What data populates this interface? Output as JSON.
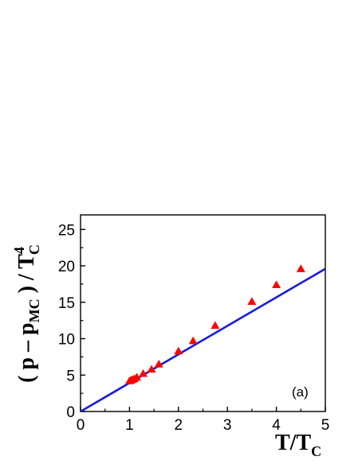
{
  "chart_data": {
    "type": "scatter",
    "title": "",
    "xlabel": {
      "main": "T/T",
      "sub": "C"
    },
    "ylabel": {
      "prefix": "( p – p",
      "sub1": "MC",
      "mid": " ) / T",
      "sup": "4",
      "sub2": "C"
    },
    "xlim": [
      0,
      5
    ],
    "ylim": [
      0,
      27
    ],
    "xticks": [
      "0",
      "1",
      "2",
      "3",
      "4",
      "5"
    ],
    "yticks": [
      "0",
      "5",
      "10",
      "15",
      "20",
      "25"
    ],
    "annotation": "(a)",
    "grid": false,
    "legend": "none",
    "colors": {
      "points": "#ff0000",
      "line": "#1a1adb",
      "axes": "#000000"
    },
    "series": [
      {
        "type": "scatter",
        "marker": "triangle-up",
        "x": [
          1.0,
          1.03,
          1.06,
          1.1,
          1.15,
          1.28,
          1.45,
          1.6,
          2.0,
          2.3,
          2.75,
          3.5,
          4.0,
          4.5
        ],
        "y": [
          4.2,
          4.3,
          4.4,
          4.5,
          4.7,
          5.2,
          5.8,
          6.5,
          8.3,
          9.7,
          11.8,
          15.1,
          17.4,
          19.6
        ]
      },
      {
        "type": "line",
        "x": [
          0,
          5
        ],
        "y": [
          0,
          19.6
        ]
      }
    ]
  }
}
